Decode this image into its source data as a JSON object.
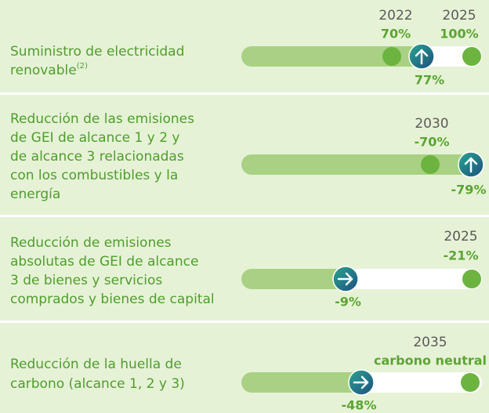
{
  "rows": [
    {
      "label_lines": [
        "Suministro de electricidad",
        "renovable"
      ],
      "sup": "(2)",
      "milestones": [
        {
          "year": "2022",
          "value": "70%"
        },
        {
          "year": "2025",
          "value": "100%"
        }
      ],
      "current": "77%"
    },
    {
      "label_lines": [
        "Reducción de las emisiones",
        "de GEI de alcance 1 y 2 y",
        "de alcance 3 relacionadas",
        "con los combustibles y la",
        "energía"
      ],
      "milestones": [
        {
          "year": "2030",
          "value": "-70%"
        }
      ],
      "current": "-79%"
    },
    {
      "label_lines": [
        "Reducción de emisiones",
        "absolutas de GEI de alcance",
        "3 de bienes y servicios",
        "comprados y bienes de capital"
      ],
      "milestones": [
        {
          "year": "2025",
          "value": "-21%"
        }
      ],
      "current": "-9%"
    },
    {
      "label_lines": [
        "Reducción de la huella de",
        "carbono (alcance 1, 2 y 3)"
      ],
      "milestones": [
        {
          "year": "2035",
          "value": "carbono neutral"
        }
      ],
      "current": "-48%"
    }
  ]
}
